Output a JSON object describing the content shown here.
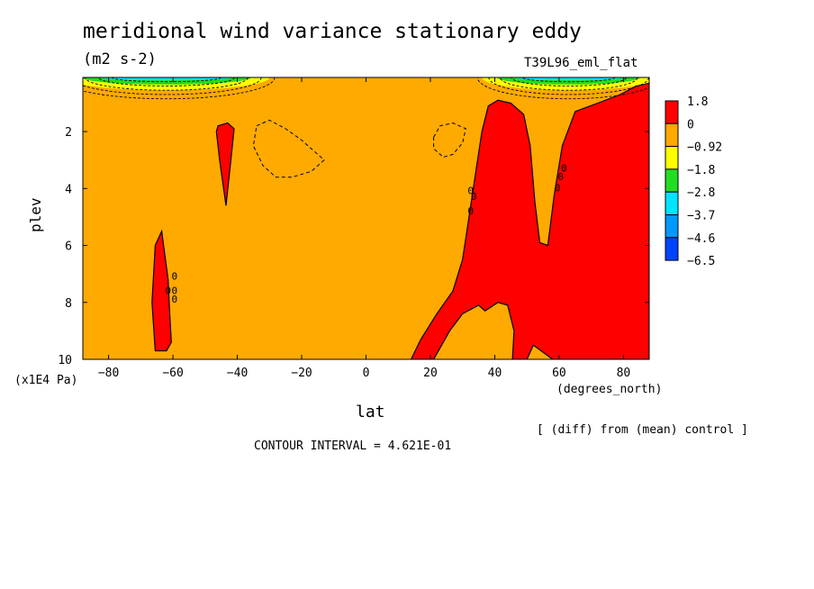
{
  "chart_data": {
    "type": "heatmap",
    "title": "meridional wind variance  stationary eddy",
    "units": "(m2 s-2)",
    "run_label": "T39L96_eml_flat",
    "xlabel": "lat",
    "x_units": "(degrees_north)",
    "ylabel": "plev",
    "y_units": "(x1E4 Pa)",
    "xlim": [
      -88,
      88
    ],
    "ylim": [
      0.1,
      10
    ],
    "y_inverted": true,
    "x_ticks": [
      -80,
      -60,
      -40,
      -20,
      0,
      20,
      40,
      60,
      80
    ],
    "y_ticks": [
      2,
      4,
      6,
      8,
      10
    ],
    "contour_interval_text": "CONTOUR INTERVAL = 4.621E-01",
    "footnote": "[ (diff) from (mean) control ]",
    "background_level_color": "#ffaa00",
    "legend": {
      "labels": [
        "1.8",
        "0",
        "-0.92",
        "-1.8",
        "-2.8",
        "-3.7",
        "-4.6",
        "-6.5"
      ],
      "colors": [
        "#ff0000",
        "#ffaa00",
        "#ffff00",
        "#22dd22",
        "#00e5ff",
        "#0099ff",
        "#0044ff"
      ]
    },
    "positive_regions": [
      {
        "name": "sh-high-lat-column",
        "points": [
          [
            -65.5,
            9.7
          ],
          [
            -66.5,
            8.0
          ],
          [
            -65.5,
            6.0
          ],
          [
            -63.5,
            5.5
          ],
          [
            -61.5,
            7.2
          ],
          [
            -61,
            8.4
          ],
          [
            -60.5,
            9.4
          ],
          [
            -62,
            9.7
          ]
        ]
      },
      {
        "name": "sh-midlat-upper-tongue",
        "points": [
          [
            -46.5,
            2.0
          ],
          [
            -46,
            1.8
          ],
          [
            -43,
            1.7
          ],
          [
            -41,
            1.9
          ],
          [
            -42,
            3.0
          ],
          [
            -43.5,
            4.6
          ],
          [
            -45.5,
            3.0
          ]
        ]
      },
      {
        "name": "nh-red-region",
        "points": [
          [
            14,
            10
          ],
          [
            17,
            9.3
          ],
          [
            22,
            8.4
          ],
          [
            27,
            7.6
          ],
          [
            30,
            6.5
          ],
          [
            32,
            5.0
          ],
          [
            34,
            3.5
          ],
          [
            36,
            2.0
          ],
          [
            38,
            1.1
          ],
          [
            41,
            0.9
          ],
          [
            45,
            1.0
          ],
          [
            49,
            1.4
          ],
          [
            51,
            2.5
          ],
          [
            52.5,
            4.5
          ],
          [
            54,
            5.9
          ],
          [
            56.5,
            6.0
          ],
          [
            58.5,
            4.2
          ],
          [
            61,
            2.5
          ],
          [
            65,
            1.3
          ],
          [
            72,
            1.0
          ],
          [
            79,
            0.7
          ],
          [
            84,
            0.4
          ],
          [
            88,
            0.3
          ],
          [
            88,
            10
          ],
          [
            58,
            10
          ],
          [
            52,
            9.5
          ],
          [
            50,
            10
          ],
          [
            45.5,
            10
          ],
          [
            46,
            9.0
          ],
          [
            44,
            8.1
          ],
          [
            41,
            8.0
          ],
          [
            37,
            8.3
          ],
          [
            35,
            8.1
          ],
          [
            30,
            8.4
          ],
          [
            26,
            9.0
          ],
          [
            23,
            9.6
          ],
          [
            21,
            10
          ]
        ]
      }
    ],
    "negative_dashed_regions": [
      {
        "name": "sh-subtropical-negative",
        "points": [
          [
            -34,
            1.8
          ],
          [
            -30,
            1.6
          ],
          [
            -25,
            1.9
          ],
          [
            -20,
            2.3
          ],
          [
            -15,
            2.8
          ],
          [
            -13,
            3.0
          ],
          [
            -17,
            3.4
          ],
          [
            -23,
            3.6
          ],
          [
            -28,
            3.6
          ],
          [
            -32,
            3.2
          ],
          [
            -35,
            2.5
          ]
        ]
      },
      {
        "name": "nh-subtropical-negative",
        "points": [
          [
            21,
            2.2
          ],
          [
            23,
            1.8
          ],
          [
            27,
            1.7
          ],
          [
            31,
            1.9
          ],
          [
            30,
            2.4
          ],
          [
            27,
            2.8
          ],
          [
            24,
            2.9
          ],
          [
            21,
            2.6
          ]
        ]
      }
    ],
    "zero_contour_labels": [
      {
        "text": "0",
        "lon": -59.5,
        "p": 7.2
      },
      {
        "text": "0",
        "lon": -61.5,
        "p": 7.7
      },
      {
        "text": "0",
        "lon": -59.5,
        "p": 7.7
      },
      {
        "text": "0",
        "lon": -59.5,
        "p": 8.0
      },
      {
        "text": "0",
        "lon": 32.5,
        "p": 4.2
      },
      {
        "text": "0",
        "lon": 33.5,
        "p": 4.4
      },
      {
        "text": "0",
        "lon": 32.5,
        "p": 4.9
      },
      {
        "text": "0",
        "lon": 59.5,
        "p": 4.1
      },
      {
        "text": "0",
        "lon": 60.5,
        "p": 3.7
      },
      {
        "text": "0",
        "lon": 61.5,
        "p": 3.4
      }
    ],
    "top_negative_bands": [
      "sh-polar-top",
      "nh-polar-top"
    ]
  }
}
